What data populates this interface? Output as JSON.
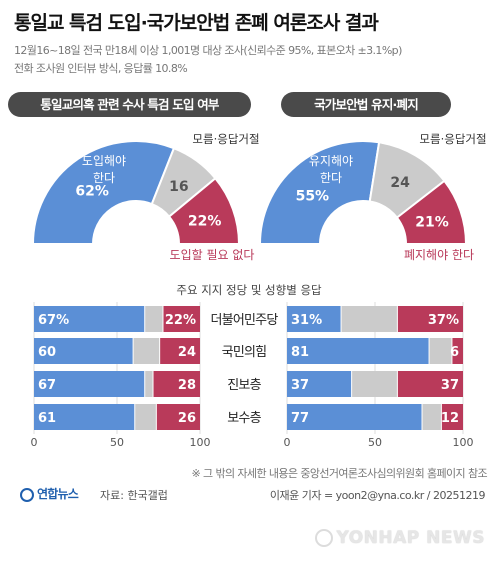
{
  "title": "통일교 특검 도입·국가보안법 존폐 여론조사 결과",
  "subtitle_line1": "12월16~18일 전국 만18세 이상 1,001명 대상 조사(신뢰수준 95%, 표본오차 ±3.1%p)",
  "subtitle_line2": "전화 조사원 인터뷰 방식, 응답률 10.8%",
  "colors": {
    "blue": "#5b8fd6",
    "gray": "#cbcbcb",
    "red": "#b93a5a",
    "pill": "#4a4a4a"
  },
  "chart_data": [
    {
      "type": "pie",
      "shape": "half-donut",
      "title": "통일교의혹 관련 수사 특검 도입 여부",
      "slices": [
        {
          "label": "도입해야 한다",
          "value": 62,
          "display": "62%",
          "color": "#5b8fd6"
        },
        {
          "label": "모름·응답거절",
          "value": 16,
          "display": "16",
          "color": "#cbcbcb"
        },
        {
          "label": "도입할 필요 없다",
          "value": 22,
          "display": "22%",
          "color": "#b93a5a"
        }
      ]
    },
    {
      "type": "pie",
      "shape": "half-donut",
      "title": "국가보안법 유지·폐지",
      "slices": [
        {
          "label": "유지해야 한다",
          "value": 55,
          "display": "55%",
          "color": "#5b8fd6"
        },
        {
          "label": "모름·응답거절",
          "value": 24,
          "display": "24",
          "color": "#cbcbcb"
        },
        {
          "label": "폐지해야 한다",
          "value": 21,
          "display": "21%",
          "color": "#b93a5a"
        }
      ]
    },
    {
      "type": "bar",
      "stacked": true,
      "title": "주요 지지 정당 및 성향별 응답",
      "categories": [
        "더불어민주당",
        "국민의힘",
        "진보층",
        "보수층"
      ],
      "xlim": [
        0,
        100
      ],
      "xticks": [
        "0",
        "50",
        "100"
      ],
      "panels": [
        {
          "topic": "통일교의혹 관련 수사 특검 도입 여부",
          "series": [
            {
              "label": "도입해야 한다",
              "values": [
                67,
                60,
                67,
                61
              ],
              "display": [
                "67%",
                "60",
                "67",
                "61"
              ]
            },
            {
              "label": "모름·응답거절",
              "values": [
                11,
                16,
                5,
                13
              ]
            },
            {
              "label": "도입할 필요 없다",
              "values": [
                22,
                24,
                28,
                26
              ],
              "display": [
                "22%",
                "24",
                "28",
                "26"
              ]
            }
          ]
        },
        {
          "topic": "국가보안법 유지·폐지",
          "series": [
            {
              "label": "유지해야 한다",
              "values": [
                31,
                81,
                37,
                77
              ],
              "display": [
                "31%",
                "81",
                "37",
                "77"
              ]
            },
            {
              "label": "모름·응답거절",
              "values": [
                32,
                13,
                26,
                11
              ]
            },
            {
              "label": "폐지해야 한다",
              "values": [
                37,
                6,
                37,
                12
              ],
              "display": [
                "37%",
                "6",
                "37",
                "12"
              ]
            }
          ]
        }
      ]
    }
  ],
  "footnote": "※ 그 밖의 자세한 내용은 중앙선거여론조사심의위원회 홈페이지 참조",
  "logo_text": "연합뉴스",
  "source": "자료: 한국갤럽",
  "credit": "이재윤 기자 = yoon2@yna.co.kr / 20251219",
  "watermark": "YONHAP NEWS"
}
